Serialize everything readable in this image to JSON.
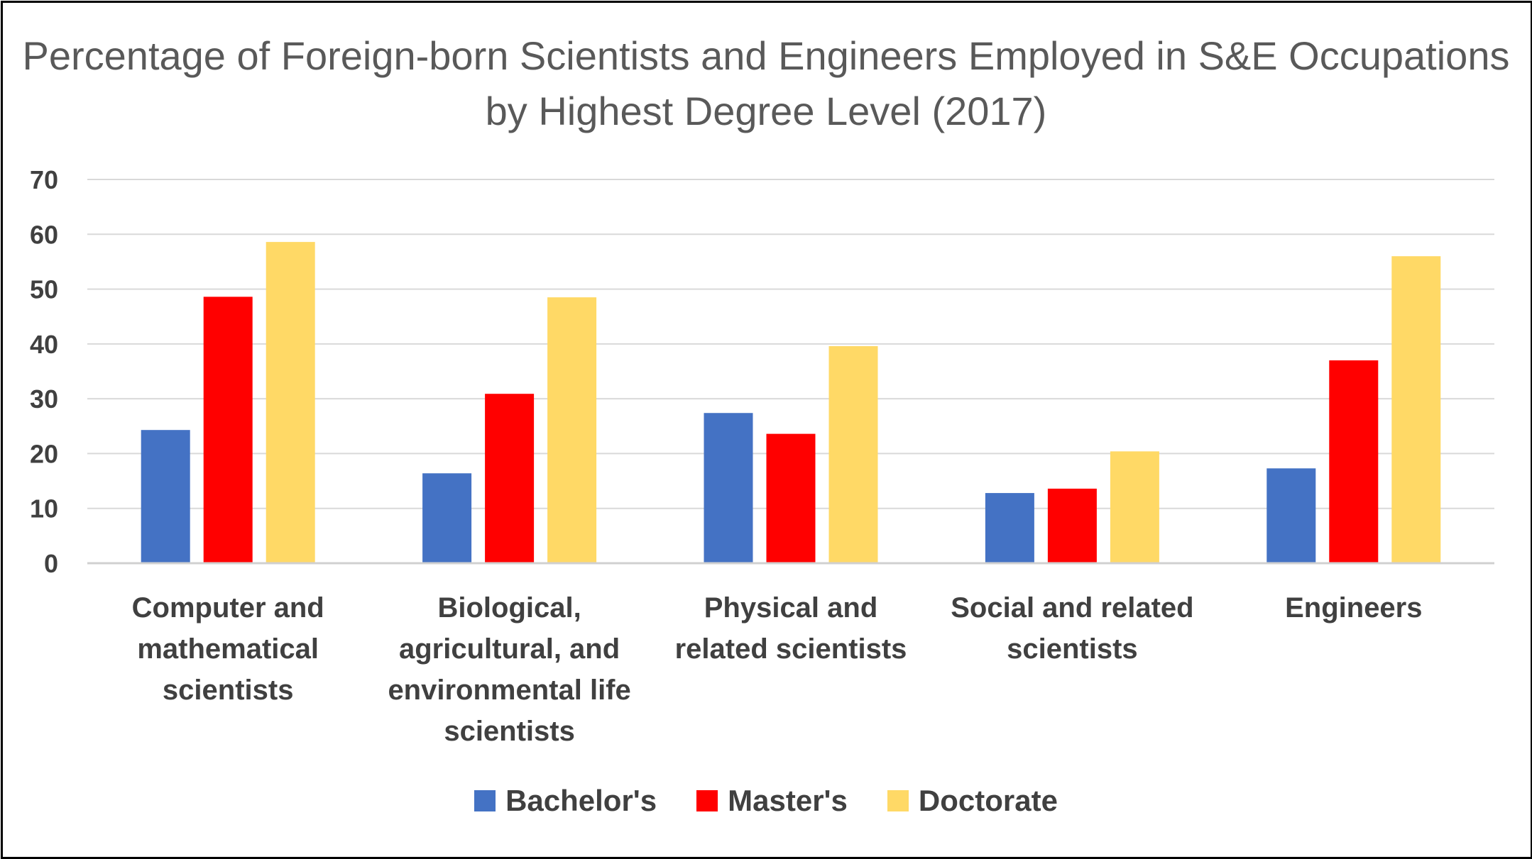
{
  "chart_data": {
    "type": "bar",
    "title": "Percentage of Foreign-born Scientists and Engineers Employed in S&E Occupations by Highest Degree Level (2017)",
    "categories": [
      "Computer and mathematical scientists",
      "Biological, agricultural, and environmental life scientists",
      "Physical and related scientists",
      "Social and related scientists",
      "Engineers"
    ],
    "series": [
      {
        "name": "Bachelor's",
        "color": "#4472C4",
        "values": [
          24.3,
          16.4,
          27.4,
          12.8,
          17.3
        ]
      },
      {
        "name": "Master's",
        "color": "#FF0000",
        "values": [
          48.6,
          30.9,
          23.6,
          13.6,
          37.0
        ]
      },
      {
        "name": "Doctorate",
        "color": "#FFD966",
        "values": [
          58.6,
          48.5,
          39.6,
          20.4,
          56.0
        ]
      }
    ],
    "ylim": [
      0,
      70
    ],
    "yticks": [
      "0",
      "10",
      "20",
      "30",
      "40",
      "50",
      "60",
      "70"
    ],
    "xlabel": "",
    "ylabel": "",
    "grid": true,
    "legend_position": "bottom"
  }
}
